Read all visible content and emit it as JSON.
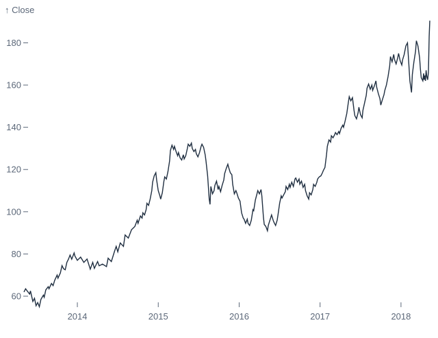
{
  "chart_data": {
    "type": "line",
    "title": "↑ Close",
    "ylabel": "Close",
    "xlabel": "",
    "grid": false,
    "legend": "none",
    "background_color": "#ffffff",
    "line_color": "#1f2e40",
    "axis_text_color": "#5b6778",
    "x_tick_labels": [
      "2014",
      "2015",
      "2016",
      "2017",
      "2018"
    ],
    "x_ticks": [
      2014,
      2015,
      2016,
      2017,
      2018
    ],
    "y_ticks": [
      60,
      80,
      100,
      120,
      140,
      160,
      180
    ],
    "xlim": [
      2013.34,
      2018.356
    ],
    "ylim": [
      54,
      192
    ],
    "series": [
      {
        "name": "Close",
        "points": [
          [
            2013.34,
            62
          ],
          [
            2013.36,
            63.5
          ],
          [
            2013.38,
            62.5
          ],
          [
            2013.41,
            61
          ],
          [
            2013.42,
            62.5
          ],
          [
            2013.45,
            57.5
          ],
          [
            2013.47,
            59
          ],
          [
            2013.49,
            55.5
          ],
          [
            2013.51,
            57
          ],
          [
            2013.53,
            55
          ],
          [
            2013.55,
            58.5
          ],
          [
            2013.58,
            60.5
          ],
          [
            2013.59,
            59.5
          ],
          [
            2013.61,
            63
          ],
          [
            2013.64,
            64.5
          ],
          [
            2013.65,
            63.5
          ],
          [
            2013.68,
            66
          ],
          [
            2013.7,
            65
          ],
          [
            2013.72,
            67.5
          ],
          [
            2013.75,
            70
          ],
          [
            2013.76,
            68.5
          ],
          [
            2013.79,
            71
          ],
          [
            2013.81,
            74.5
          ],
          [
            2013.83,
            73
          ],
          [
            2013.85,
            72.5
          ],
          [
            2013.87,
            76
          ],
          [
            2013.89,
            77.5
          ],
          [
            2013.91,
            79.5
          ],
          [
            2013.93,
            77.5
          ],
          [
            2013.96,
            80.5
          ],
          [
            2013.97,
            79
          ],
          [
            2014,
            77
          ],
          [
            2014.04,
            78.5
          ],
          [
            2014.08,
            76
          ],
          [
            2014.12,
            77.6
          ],
          [
            2014.16,
            72.8
          ],
          [
            2014.19,
            76
          ],
          [
            2014.21,
            73.2
          ],
          [
            2014.25,
            76.4
          ],
          [
            2014.27,
            74.4
          ],
          [
            2014.31,
            75.2
          ],
          [
            2014.36,
            74
          ],
          [
            2014.38,
            78
          ],
          [
            2014.42,
            76.4
          ],
          [
            2014.46,
            81.3
          ],
          [
            2014.48,
            83.6
          ],
          [
            2014.5,
            81
          ],
          [
            2014.53,
            85.2
          ],
          [
            2014.57,
            83.6
          ],
          [
            2014.59,
            89
          ],
          [
            2014.63,
            87.5
          ],
          [
            2014.67,
            91.5
          ],
          [
            2014.71,
            93
          ],
          [
            2014.74,
            96
          ],
          [
            2014.75,
            94.5
          ],
          [
            2014.78,
            98
          ],
          [
            2014.8,
            97
          ],
          [
            2014.81,
            99.5
          ],
          [
            2014.83,
            98.5
          ],
          [
            2014.85,
            101
          ],
          [
            2014.86,
            104
          ],
          [
            2014.88,
            103
          ],
          [
            2014.9,
            106
          ],
          [
            2014.92,
            110
          ],
          [
            2014.93,
            114
          ],
          [
            2014.95,
            117
          ],
          [
            2014.97,
            118.5
          ],
          [
            2014.98,
            115
          ],
          [
            2015,
            110
          ],
          [
            2015.02,
            107.5
          ],
          [
            2015.03,
            106
          ],
          [
            2015.05,
            109
          ],
          [
            2015.07,
            114.5
          ],
          [
            2015.08,
            116.5
          ],
          [
            2015.1,
            115.5
          ],
          [
            2015.12,
            119
          ],
          [
            2015.14,
            124
          ],
          [
            2015.15,
            129
          ],
          [
            2015.17,
            131.5
          ],
          [
            2015.19,
            129.5
          ],
          [
            2015.2,
            131
          ],
          [
            2015.22,
            128.5
          ],
          [
            2015.24,
            126.5
          ],
          [
            2015.25,
            128
          ],
          [
            2015.27,
            125.5
          ],
          [
            2015.29,
            124.5
          ],
          [
            2015.31,
            127
          ],
          [
            2015.32,
            125
          ],
          [
            2015.34,
            126.5
          ],
          [
            2015.36,
            130
          ],
          [
            2015.37,
            132
          ],
          [
            2015.39,
            131
          ],
          [
            2015.41,
            132.5
          ],
          [
            2015.42,
            130
          ],
          [
            2015.44,
            128.5
          ],
          [
            2015.46,
            129.5
          ],
          [
            2015.47,
            127.5
          ],
          [
            2015.49,
            126
          ],
          [
            2015.51,
            128
          ],
          [
            2015.53,
            131
          ],
          [
            2015.54,
            132
          ],
          [
            2015.56,
            130.5
          ],
          [
            2015.58,
            127
          ],
          [
            2015.59,
            124
          ],
          [
            2015.61,
            117
          ],
          [
            2015.63,
            106
          ],
          [
            2015.64,
            103.5
          ],
          [
            2015.65,
            112
          ],
          [
            2015.67,
            108.5
          ],
          [
            2015.69,
            110
          ],
          [
            2015.7,
            112.5
          ],
          [
            2015.72,
            114.5
          ],
          [
            2015.74,
            110.5
          ],
          [
            2015.75,
            112
          ],
          [
            2015.77,
            109.5
          ],
          [
            2015.79,
            112.5
          ],
          [
            2015.81,
            115
          ],
          [
            2015.82,
            118
          ],
          [
            2015.84,
            120.5
          ],
          [
            2015.86,
            122.5
          ],
          [
            2015.87,
            121
          ],
          [
            2015.89,
            118.5
          ],
          [
            2015.91,
            117.5
          ],
          [
            2015.92,
            113
          ],
          [
            2015.94,
            108.5
          ],
          [
            2015.96,
            110
          ],
          [
            2015.97,
            109
          ],
          [
            2015.99,
            106.5
          ],
          [
            2016.01,
            105
          ],
          [
            2016.03,
            99.5
          ],
          [
            2016.05,
            97
          ],
          [
            2016.06,
            96.5
          ],
          [
            2016.08,
            94.5
          ],
          [
            2016.1,
            96.5
          ],
          [
            2016.11,
            94.5
          ],
          [
            2016.13,
            93.5
          ],
          [
            2016.15,
            96
          ],
          [
            2016.17,
            101
          ],
          [
            2016.18,
            100.5
          ],
          [
            2016.2,
            105.5
          ],
          [
            2016.22,
            108.5
          ],
          [
            2016.23,
            110
          ],
          [
            2016.25,
            108.5
          ],
          [
            2016.27,
            110.5
          ],
          [
            2016.28,
            107.5
          ],
          [
            2016.3,
            97.5
          ],
          [
            2016.31,
            94
          ],
          [
            2016.33,
            93
          ],
          [
            2016.35,
            91
          ],
          [
            2016.36,
            93.5
          ],
          [
            2016.38,
            96
          ],
          [
            2016.4,
            98.5
          ],
          [
            2016.42,
            96
          ],
          [
            2016.43,
            95
          ],
          [
            2016.45,
            93.5
          ],
          [
            2016.47,
            96
          ],
          [
            2016.48,
            98.5
          ],
          [
            2016.5,
            104
          ],
          [
            2016.52,
            107.5
          ],
          [
            2016.53,
            106.5
          ],
          [
            2016.55,
            108
          ],
          [
            2016.57,
            109.5
          ],
          [
            2016.58,
            112
          ],
          [
            2016.6,
            110.5
          ],
          [
            2016.62,
            113
          ],
          [
            2016.63,
            111.5
          ],
          [
            2016.65,
            114
          ],
          [
            2016.67,
            112
          ],
          [
            2016.69,
            115.5
          ],
          [
            2016.7,
            116
          ],
          [
            2016.72,
            114
          ],
          [
            2016.74,
            115.5
          ],
          [
            2016.75,
            113
          ],
          [
            2016.77,
            114.5
          ],
          [
            2016.79,
            111.5
          ],
          [
            2016.81,
            113
          ],
          [
            2016.82,
            110
          ],
          [
            2016.84,
            107.5
          ],
          [
            2016.86,
            106
          ],
          [
            2016.87,
            109
          ],
          [
            2016.89,
            108
          ],
          [
            2016.91,
            110.5
          ],
          [
            2016.92,
            113
          ],
          [
            2016.94,
            112
          ],
          [
            2016.96,
            114
          ],
          [
            2016.97,
            115.5
          ],
          [
            2016.99,
            116.5
          ],
          [
            2017.01,
            117
          ],
          [
            2017.03,
            118.5
          ],
          [
            2017.04,
            119.5
          ],
          [
            2017.06,
            121
          ],
          [
            2017.08,
            127
          ],
          [
            2017.09,
            131
          ],
          [
            2017.11,
            134
          ],
          [
            2017.13,
            133
          ],
          [
            2017.14,
            136
          ],
          [
            2017.16,
            135
          ],
          [
            2017.18,
            136.5
          ],
          [
            2017.19,
            137.5
          ],
          [
            2017.21,
            136.5
          ],
          [
            2017.23,
            138
          ],
          [
            2017.24,
            137
          ],
          [
            2017.26,
            139.5
          ],
          [
            2017.28,
            141
          ],
          [
            2017.29,
            140
          ],
          [
            2017.31,
            143
          ],
          [
            2017.33,
            146.5
          ],
          [
            2017.35,
            152
          ],
          [
            2017.36,
            154.5
          ],
          [
            2017.38,
            152.5
          ],
          [
            2017.4,
            154
          ],
          [
            2017.42,
            148
          ],
          [
            2017.43,
            145.5
          ],
          [
            2017.45,
            144
          ],
          [
            2017.47,
            147
          ],
          [
            2017.48,
            149.5
          ],
          [
            2017.5,
            146
          ],
          [
            2017.52,
            144.5
          ],
          [
            2017.53,
            148
          ],
          [
            2017.55,
            151.5
          ],
          [
            2017.57,
            155
          ],
          [
            2017.58,
            158.5
          ],
          [
            2017.6,
            160.5
          ],
          [
            2017.62,
            158
          ],
          [
            2017.64,
            160
          ],
          [
            2017.65,
            157.5
          ],
          [
            2017.67,
            159.5
          ],
          [
            2017.69,
            162
          ],
          [
            2017.7,
            159
          ],
          [
            2017.72,
            156
          ],
          [
            2017.74,
            153.5
          ],
          [
            2017.75,
            150.5
          ],
          [
            2017.77,
            153
          ],
          [
            2017.79,
            155.5
          ],
          [
            2017.8,
            157.5
          ],
          [
            2017.82,
            160
          ],
          [
            2017.84,
            164
          ],
          [
            2017.86,
            169
          ],
          [
            2017.87,
            173.5
          ],
          [
            2017.89,
            171
          ],
          [
            2017.91,
            174.5
          ],
          [
            2017.92,
            172
          ],
          [
            2017.94,
            170
          ],
          [
            2017.96,
            173
          ],
          [
            2017.97,
            175
          ],
          [
            2017.99,
            171.5
          ],
          [
            2018.01,
            169.5
          ],
          [
            2018.02,
            172
          ],
          [
            2018.04,
            174.5
          ],
          [
            2018.06,
            178.5
          ],
          [
            2018.08,
            180
          ],
          [
            2018.09,
            174
          ],
          [
            2018.11,
            162
          ],
          [
            2018.13,
            156.5
          ],
          [
            2018.14,
            165
          ],
          [
            2018.16,
            171
          ],
          [
            2018.18,
            176
          ],
          [
            2018.19,
            181
          ],
          [
            2018.21,
            178.5
          ],
          [
            2018.23,
            173
          ],
          [
            2018.24,
            167.5
          ],
          [
            2018.25,
            163.5
          ],
          [
            2018.27,
            162
          ],
          [
            2018.28,
            165.5
          ],
          [
            2018.286,
            162.5
          ],
          [
            2018.295,
            164.5
          ],
          [
            2018.303,
            162
          ],
          [
            2018.31,
            167
          ],
          [
            2018.32,
            164
          ],
          [
            2018.33,
            162.5
          ],
          [
            2018.339,
            166
          ],
          [
            2018.348,
            183
          ],
          [
            2018.356,
            190.5
          ]
        ]
      }
    ]
  }
}
